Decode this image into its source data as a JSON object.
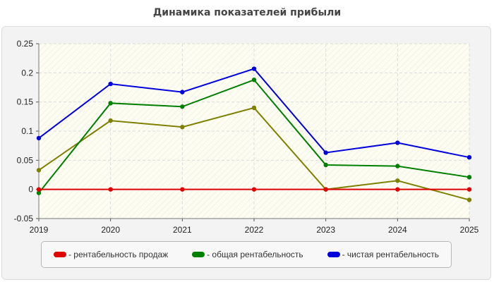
{
  "chart_data": {
    "type": "line",
    "title": "Динамика показателей прибыли",
    "x": [
      "2019",
      "2020",
      "2021",
      "2022",
      "2023",
      "2024",
      "2025"
    ],
    "ylim": [
      -0.05,
      0.25
    ],
    "yticks": [
      "-0.05",
      "0",
      "0.05",
      "0.1",
      "0.15",
      "0.2",
      "0.25"
    ],
    "grid": true,
    "legend_position": "bottom",
    "series": [
      {
        "name": "- рентабельность продаж",
        "color": "#e00000",
        "values": [
          0,
          0,
          0,
          0,
          0,
          0,
          0
        ]
      },
      {
        "name": "- общая рентабельность",
        "color": "#008000",
        "values": [
          -0.006,
          0.148,
          0.142,
          0.188,
          0.042,
          0.04,
          0.021
        ]
      },
      {
        "name": "- чистая рентабельность",
        "color": "#0000dd",
        "values": [
          0.088,
          0.181,
          0.167,
          0.207,
          0.063,
          0.08,
          0.055
        ]
      },
      {
        "name": "",
        "color": "#7f7f00",
        "values": [
          0.033,
          0.118,
          0.107,
          0.14,
          0.0,
          0.015,
          -0.018
        ]
      }
    ]
  }
}
